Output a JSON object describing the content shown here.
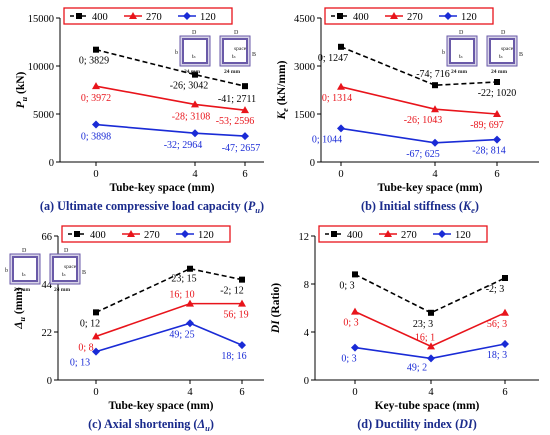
{
  "colors": {
    "s400": "#000000",
    "s270": "#e8141b",
    "s120": "#1a2bd6",
    "legend_border": "#e8141b",
    "caption": "#1a2b8c",
    "tube": "#6a5aa8"
  },
  "legend": [
    "400",
    "270",
    "120"
  ],
  "schematic_labels": {
    "b": "b",
    "t": "tₛ",
    "width": "24 mm",
    "B": "B",
    "D": "D",
    "space": "space"
  },
  "chart_data": [
    {
      "type": "line",
      "caption": {
        "pre": "(a) Ultimate compressive load capacity (",
        "sym": "P",
        "sub": "u",
        "post": ")"
      },
      "ylabel": {
        "sym": "P",
        "sub": "u",
        "unit": " (kN)"
      },
      "xlabel": "Tube-key space (mm)",
      "x": [
        0,
        4,
        6
      ],
      "ylim": [
        0,
        15000
      ],
      "yticks": [
        0,
        5000,
        10000,
        15000
      ],
      "series": [
        {
          "name": "400",
          "values": [
            11700,
            9100,
            7900
          ],
          "labels": [
            "0; 3829",
            "-26; 3042",
            "-41; 2711"
          ]
        },
        {
          "name": "270",
          "values": [
            7900,
            6000,
            5400
          ],
          "labels": [
            "0; 3972",
            "-28; 3108",
            "-53; 2596"
          ]
        },
        {
          "name": "120",
          "values": [
            3900,
            3000,
            2700
          ],
          "labels": [
            "0; 3898",
            "-32; 2964",
            "-47; 2657"
          ]
        }
      ]
    },
    {
      "type": "line",
      "caption": {
        "pre": "(b) Initial stiffness (",
        "sym": "K",
        "sub": "e",
        "post": ")"
      },
      "ylabel": {
        "sym": "K",
        "sub": "e",
        "unit": " (kN/mm)"
      },
      "xlabel": "Tube-key space (mm)",
      "x": [
        0,
        4,
        6
      ],
      "ylim": [
        0,
        4500
      ],
      "yticks": [
        0,
        1500,
        3000,
        4500
      ],
      "series": [
        {
          "name": "400",
          "values": [
            3600,
            2400,
            2500
          ],
          "labels": [
            "0; 1247",
            "-74; 716",
            "-22; 1020"
          ]
        },
        {
          "name": "270",
          "values": [
            2350,
            1650,
            1500
          ],
          "labels": [
            "0; 1314",
            "-26; 1043",
            "-89; 697"
          ]
        },
        {
          "name": "120",
          "values": [
            1050,
            600,
            700
          ],
          "labels": [
            "0; 1044",
            "-67; 625",
            "-28; 814"
          ]
        }
      ]
    },
    {
      "type": "line",
      "caption": {
        "pre": "(c) Axial shortening (",
        "sym": "Δ",
        "sub": "u",
        "post": ")"
      },
      "ylabel": {
        "sym": "Δ",
        "sub": "u",
        "unit": " (mm)"
      },
      "xlabel": "Tube-key space (mm)",
      "x": [
        0,
        4,
        6
      ],
      "ylim": [
        0,
        66
      ],
      "yticks": [
        0,
        22,
        44,
        66
      ],
      "series": [
        {
          "name": "400",
          "values": [
            31,
            51,
            46
          ],
          "labels": [
            "0; 12",
            "23; 15",
            "-2; 12"
          ]
        },
        {
          "name": "270",
          "values": [
            20,
            35,
            35
          ],
          "labels": [
            "0; 8",
            "16; 10",
            "56; 19"
          ]
        },
        {
          "name": "120",
          "values": [
            13,
            26,
            16
          ],
          "labels": [
            "0; 13",
            "49; 25",
            "18; 16"
          ]
        }
      ]
    },
    {
      "type": "line",
      "caption": {
        "pre": "(d) Ductility index (",
        "sym": "DI",
        "sub": "",
        "post": ")"
      },
      "ylabel": {
        "sym": "DI",
        "sub": "",
        "unit": " (Ratio)"
      },
      "xlabel": "Key-tube space (mm)",
      "x": [
        0,
        4,
        6
      ],
      "ylim": [
        0,
        12
      ],
      "yticks": [
        0,
        4,
        8,
        12
      ],
      "series": [
        {
          "name": "400",
          "values": [
            8.8,
            5.6,
            8.5
          ],
          "labels": [
            "0; 3",
            "23; 3",
            "-2; 3"
          ]
        },
        {
          "name": "270",
          "values": [
            5.7,
            2.8,
            5.6
          ],
          "labels": [
            "0; 3",
            "16; 1",
            "56; 3"
          ]
        },
        {
          "name": "120",
          "values": [
            2.7,
            1.8,
            3.0
          ],
          "labels": [
            "0; 3",
            "49; 2",
            "18; 3"
          ]
        }
      ]
    }
  ]
}
